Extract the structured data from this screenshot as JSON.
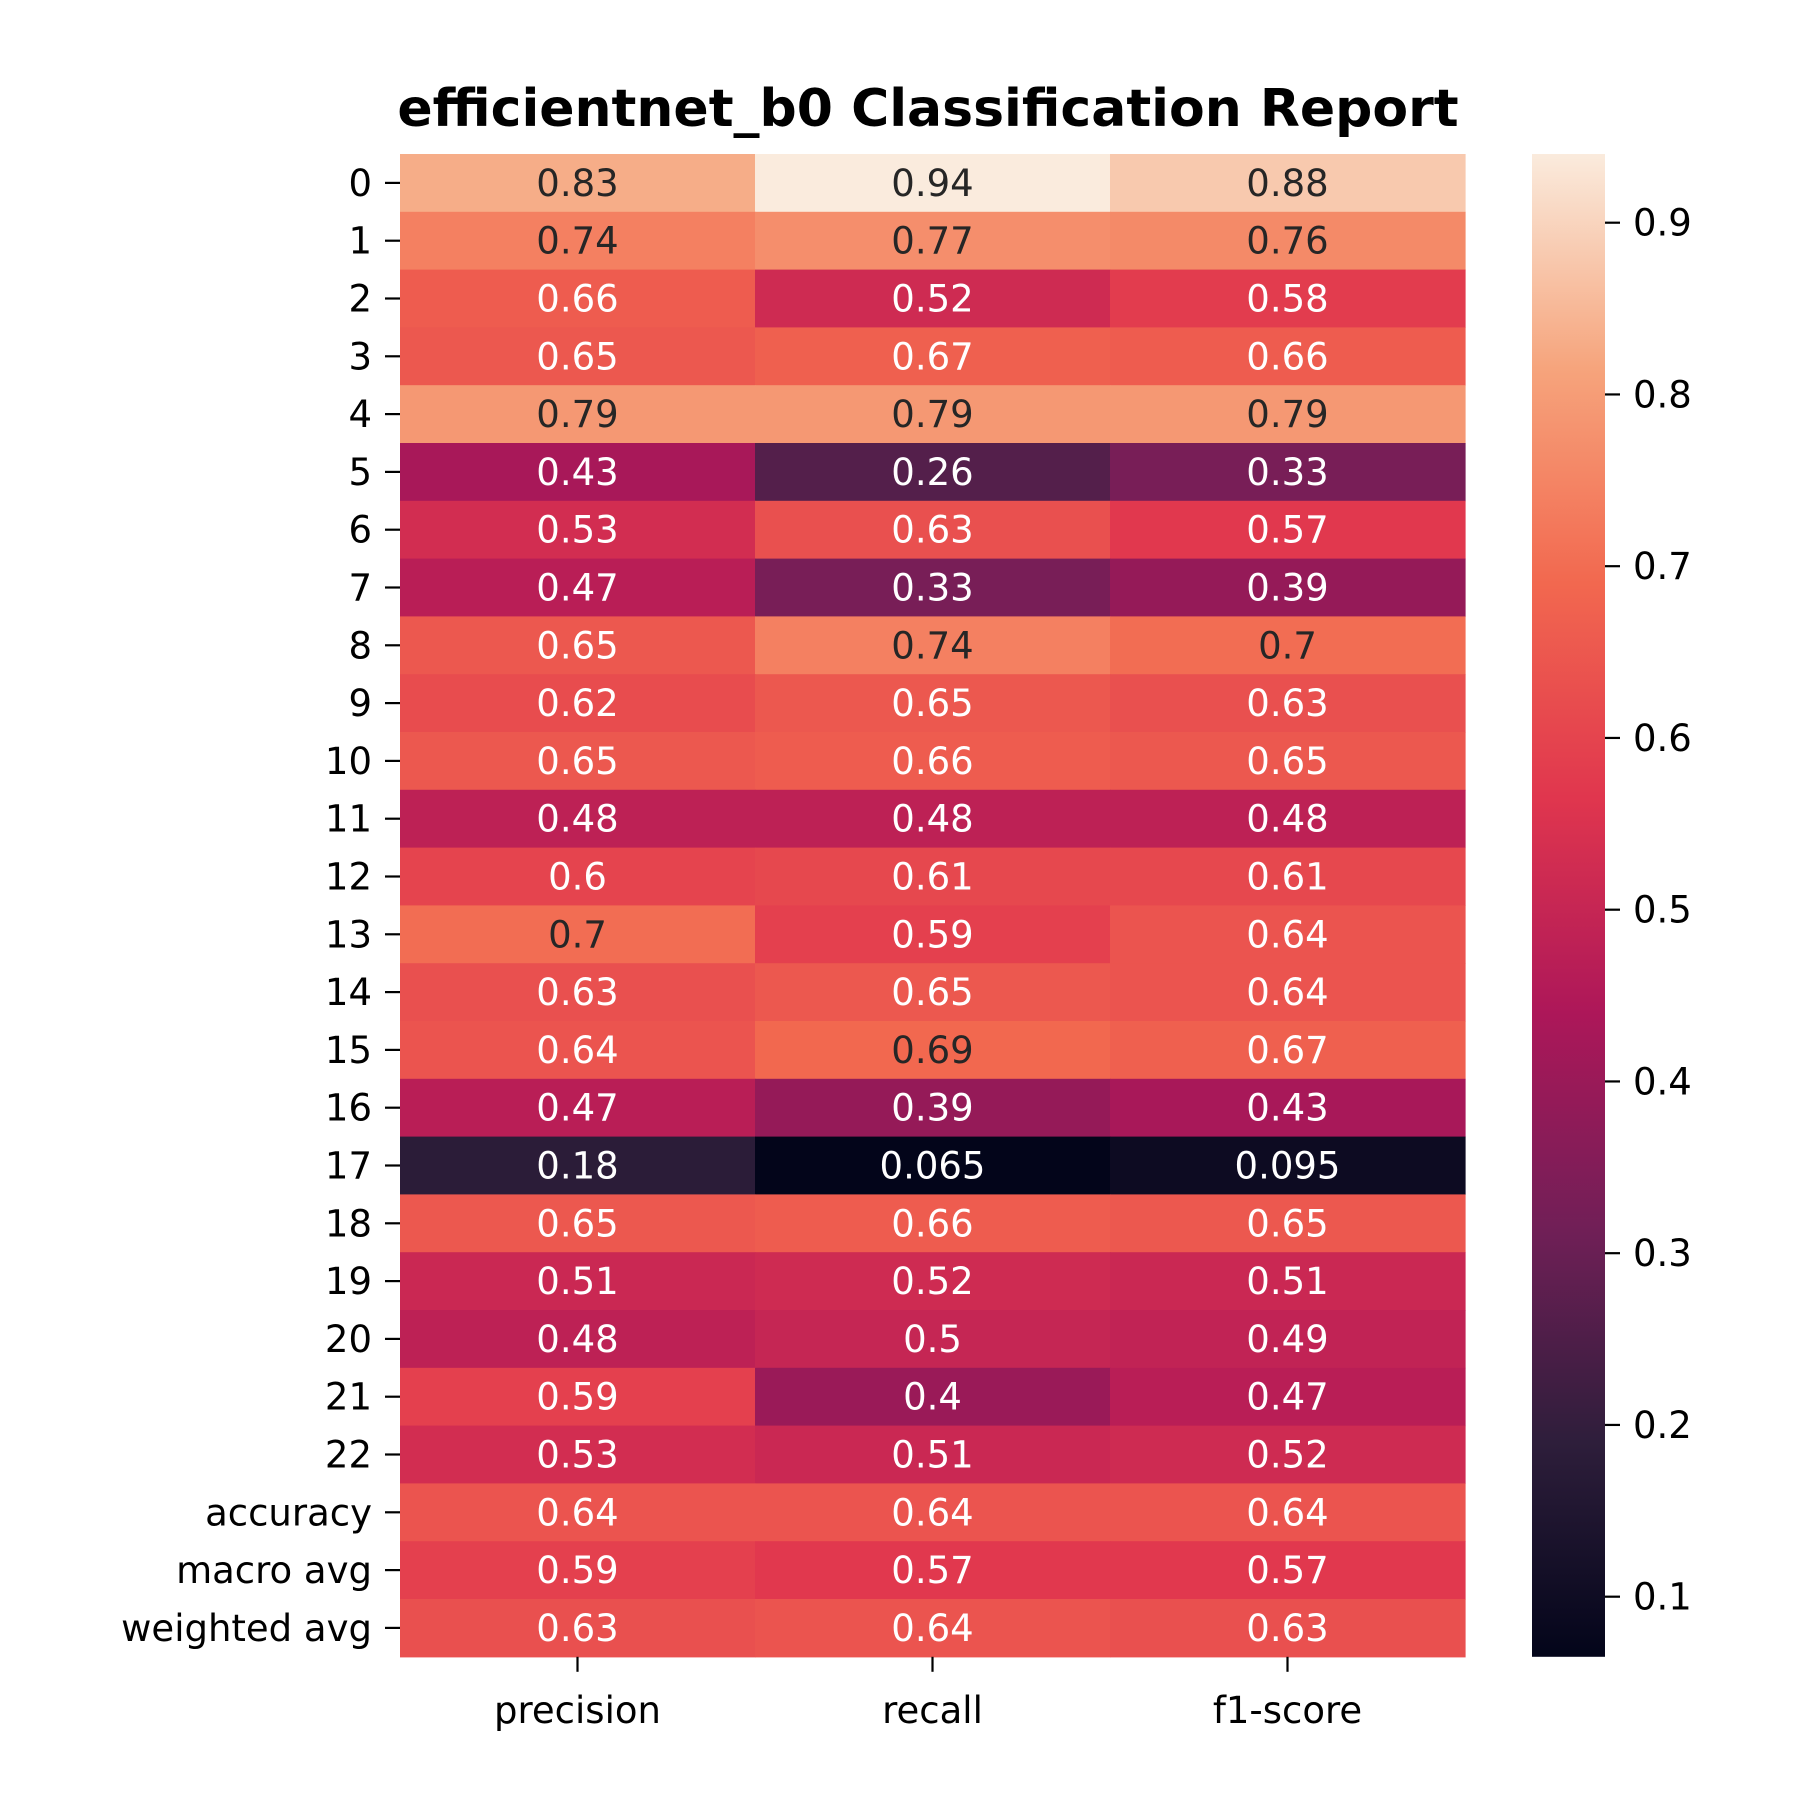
{
  "chart_data": {
    "type": "heatmap",
    "title": "efficientnet_b0 Classification Report",
    "columns": [
      "precision",
      "recall",
      "f1-score"
    ],
    "rows": [
      "0",
      "1",
      "2",
      "3",
      "4",
      "5",
      "6",
      "7",
      "8",
      "9",
      "10",
      "11",
      "12",
      "13",
      "14",
      "15",
      "16",
      "17",
      "18",
      "19",
      "20",
      "21",
      "22",
      "accuracy",
      "macro avg",
      "weighted avg"
    ],
    "values": [
      [
        0.83,
        0.94,
        0.88
      ],
      [
        0.74,
        0.77,
        0.76
      ],
      [
        0.66,
        0.52,
        0.58
      ],
      [
        0.65,
        0.67,
        0.66
      ],
      [
        0.79,
        0.79,
        0.79
      ],
      [
        0.43,
        0.26,
        0.33
      ],
      [
        0.53,
        0.63,
        0.57
      ],
      [
        0.47,
        0.33,
        0.39
      ],
      [
        0.65,
        0.74,
        0.7
      ],
      [
        0.62,
        0.65,
        0.63
      ],
      [
        0.65,
        0.66,
        0.65
      ],
      [
        0.48,
        0.48,
        0.48
      ],
      [
        0.6,
        0.61,
        0.61
      ],
      [
        0.7,
        0.59,
        0.64
      ],
      [
        0.63,
        0.65,
        0.64
      ],
      [
        0.64,
        0.69,
        0.67
      ],
      [
        0.47,
        0.39,
        0.43
      ],
      [
        0.18,
        0.065,
        0.095
      ],
      [
        0.65,
        0.66,
        0.65
      ],
      [
        0.51,
        0.52,
        0.51
      ],
      [
        0.48,
        0.5,
        0.49
      ],
      [
        0.59,
        0.4,
        0.47
      ],
      [
        0.53,
        0.51,
        0.52
      ],
      [
        0.64,
        0.64,
        0.64
      ],
      [
        0.59,
        0.57,
        0.57
      ],
      [
        0.63,
        0.64,
        0.63
      ]
    ],
    "colorbar": {
      "range": [
        0.065,
        0.94
      ],
      "ticks": [
        0.1,
        0.2,
        0.3,
        0.4,
        0.5,
        0.6,
        0.7,
        0.8,
        0.9
      ],
      "tick_labels": [
        "0.1",
        "0.2",
        "0.3",
        "0.4",
        "0.5",
        "0.6",
        "0.7",
        "0.8",
        "0.9"
      ]
    },
    "colormap": "rocket",
    "colormap_stops": [
      "#03051a",
      "#2e1e3b",
      "#711f57",
      "#ad1759",
      "#e0364e",
      "#f2684f",
      "#f6a47c",
      "#faebdd"
    ]
  }
}
